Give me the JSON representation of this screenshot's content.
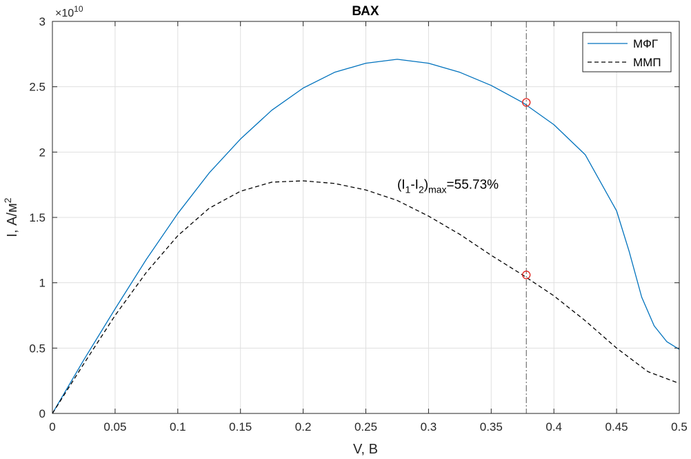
{
  "chart_data": {
    "type": "line",
    "title": "ВАХ",
    "xlabel": "V, В",
    "ylabel_main": "I, А/м",
    "ylabel_sup": "2",
    "y_multiplier_base": "×10",
    "y_multiplier_exp": "10",
    "xlim": [
      0,
      0.5
    ],
    "ylim": [
      0,
      3
    ],
    "y_scale_factor": 10000000000,
    "grid": true,
    "legend_position": "top-right",
    "x_ticks": [
      0,
      0.05,
      0.1,
      0.15,
      0.2,
      0.25,
      0.3,
      0.35,
      0.4,
      0.45,
      0.5
    ],
    "x_tick_labels": [
      "0",
      "0.05",
      "0.1",
      "0.15",
      "0.2",
      "0.25",
      "0.3",
      "0.35",
      "0.4",
      "0.45",
      "0.5"
    ],
    "y_ticks": [
      0,
      0.5,
      1,
      1.5,
      2,
      2.5,
      3
    ],
    "y_tick_labels": [
      "0",
      "0.5",
      "1",
      "1.5",
      "2",
      "2.5",
      "3"
    ],
    "series": [
      {
        "name": "МФГ",
        "color": "#0072BD",
        "style": "solid",
        "x": [
          0,
          0.025,
          0.05,
          0.075,
          0.1,
          0.125,
          0.15,
          0.175,
          0.2,
          0.225,
          0.25,
          0.275,
          0.3,
          0.325,
          0.35,
          0.375,
          0.4,
          0.425,
          0.45,
          0.46,
          0.47,
          0.48,
          0.49,
          0.5
        ],
        "y": [
          0,
          0.41,
          0.8,
          1.18,
          1.53,
          1.84,
          2.1,
          2.32,
          2.49,
          2.61,
          2.68,
          2.71,
          2.68,
          2.61,
          2.51,
          2.38,
          2.21,
          1.98,
          1.55,
          1.24,
          0.89,
          0.67,
          0.55,
          0.49
        ]
      },
      {
        "name": "ММП",
        "color": "#000000",
        "style": "dashed",
        "x": [
          0,
          0.025,
          0.05,
          0.075,
          0.1,
          0.125,
          0.15,
          0.175,
          0.2,
          0.225,
          0.25,
          0.275,
          0.3,
          0.325,
          0.35,
          0.375,
          0.4,
          0.425,
          0.45,
          0.475,
          0.5
        ],
        "y": [
          0,
          0.38,
          0.75,
          1.08,
          1.36,
          1.57,
          1.7,
          1.77,
          1.78,
          1.76,
          1.71,
          1.63,
          1.51,
          1.37,
          1.21,
          1.06,
          0.9,
          0.71,
          0.5,
          0.32,
          0.23
        ]
      }
    ],
    "vline": {
      "x": 0.378,
      "style": "dash-dot",
      "color": "#555555"
    },
    "markers": [
      {
        "x": 0.378,
        "y": 2.38,
        "color": "#E0201B"
      },
      {
        "x": 0.378,
        "y": 1.06,
        "color": "#E0201B"
      }
    ],
    "annotation": {
      "x": 0.275,
      "y": 1.72,
      "open": "(I",
      "sub1": "1",
      "mid": "-I",
      "sub2": "2",
      "close": ")",
      "sub3": "max",
      "value": "=55.73%"
    }
  }
}
